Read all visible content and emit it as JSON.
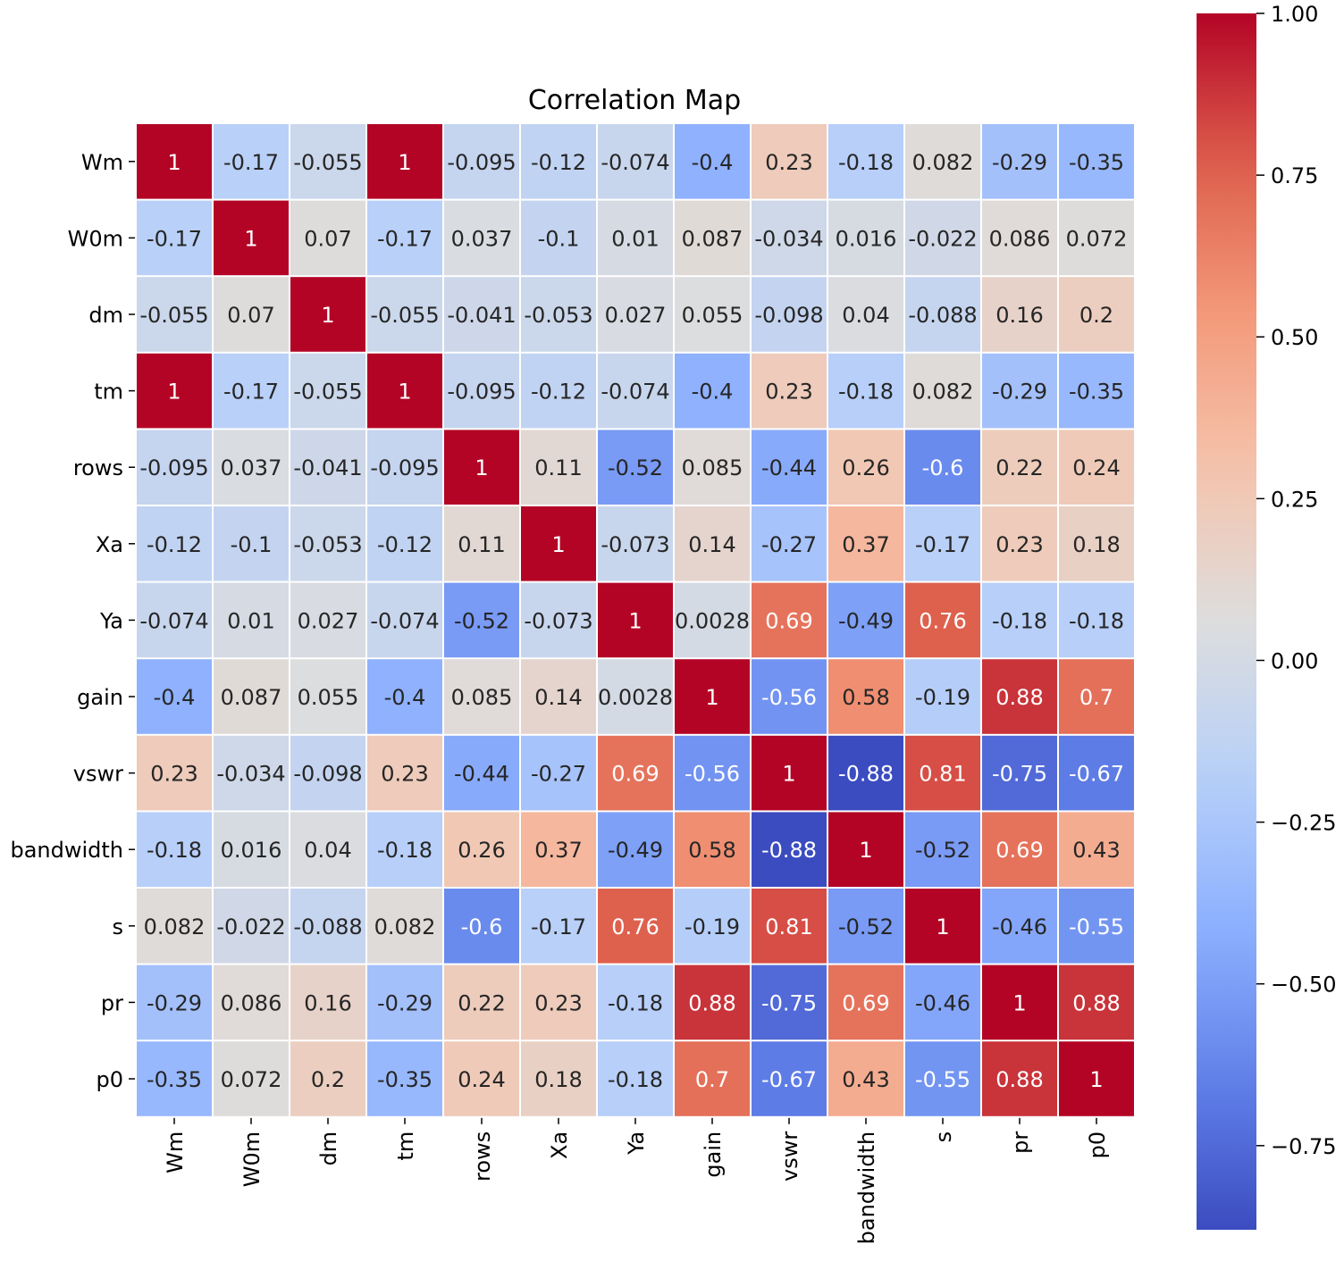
{
  "chart_data": {
    "type": "heatmap",
    "title": "Correlation Map",
    "xlabel": "",
    "ylabel": "",
    "colormap": "coolwarm",
    "vmin": -0.88,
    "vmax": 1.0,
    "x_labels": [
      "Wm",
      "W0m",
      "dm",
      "tm",
      "rows",
      "Xa",
      "Ya",
      "gain",
      "vswr",
      "bandwidth",
      "s",
      "pr",
      "p0"
    ],
    "y_labels": [
      "Wm",
      "W0m",
      "dm",
      "tm",
      "rows",
      "Xa",
      "Ya",
      "gain",
      "vswr",
      "bandwidth",
      "s",
      "pr",
      "p0"
    ],
    "values": [
      [
        1,
        -0.17,
        -0.055,
        1,
        -0.095,
        -0.12,
        -0.074,
        -0.4,
        0.23,
        -0.18,
        0.082,
        -0.29,
        -0.35
      ],
      [
        -0.17,
        1,
        0.07,
        -0.17,
        0.037,
        -0.1,
        0.01,
        0.087,
        -0.034,
        0.016,
        -0.022,
        0.086,
        0.072
      ],
      [
        -0.055,
        0.07,
        1,
        -0.055,
        -0.041,
        -0.053,
        0.027,
        0.055,
        -0.098,
        0.04,
        -0.088,
        0.16,
        0.2
      ],
      [
        1,
        -0.17,
        -0.055,
        1,
        -0.095,
        -0.12,
        -0.074,
        -0.4,
        0.23,
        -0.18,
        0.082,
        -0.29,
        -0.35
      ],
      [
        -0.095,
        0.037,
        -0.041,
        -0.095,
        1,
        0.11,
        -0.52,
        0.085,
        -0.44,
        0.26,
        -0.6,
        0.22,
        0.24
      ],
      [
        -0.12,
        -0.1,
        -0.053,
        -0.12,
        0.11,
        1,
        -0.073,
        0.14,
        -0.27,
        0.37,
        -0.17,
        0.23,
        0.18
      ],
      [
        -0.074,
        0.01,
        0.027,
        -0.074,
        -0.52,
        -0.073,
        1,
        0.0028,
        0.69,
        -0.49,
        0.76,
        -0.18,
        -0.18
      ],
      [
        -0.4,
        0.087,
        0.055,
        -0.4,
        0.085,
        0.14,
        0.0028,
        1,
        -0.56,
        0.58,
        -0.19,
        0.88,
        0.7
      ],
      [
        0.23,
        -0.034,
        -0.098,
        0.23,
        -0.44,
        -0.27,
        0.69,
        -0.56,
        1,
        -0.88,
        0.81,
        -0.75,
        -0.67
      ],
      [
        -0.18,
        0.016,
        0.04,
        -0.18,
        0.26,
        0.37,
        -0.49,
        0.58,
        -0.88,
        1,
        -0.52,
        0.69,
        0.43
      ],
      [
        0.082,
        -0.022,
        -0.088,
        0.082,
        -0.6,
        -0.17,
        0.76,
        -0.19,
        0.81,
        -0.52,
        1,
        -0.46,
        -0.55
      ],
      [
        -0.29,
        0.086,
        0.16,
        -0.29,
        0.22,
        0.23,
        -0.18,
        0.88,
        -0.75,
        0.69,
        -0.46,
        1,
        0.88
      ],
      [
        -0.35,
        0.072,
        0.2,
        -0.35,
        0.24,
        0.18,
        -0.18,
        0.7,
        -0.67,
        0.43,
        -0.55,
        0.88,
        1
      ]
    ],
    "colorbar": {
      "ticks": [
        1.0,
        0.75,
        0.5,
        0.25,
        0.0,
        -0.25,
        -0.5,
        -0.75
      ],
      "tick_labels": [
        "1.00",
        "0.75",
        "0.50",
        "0.25",
        "0.00",
        "−0.25",
        "−0.50",
        "−0.75"
      ]
    }
  }
}
